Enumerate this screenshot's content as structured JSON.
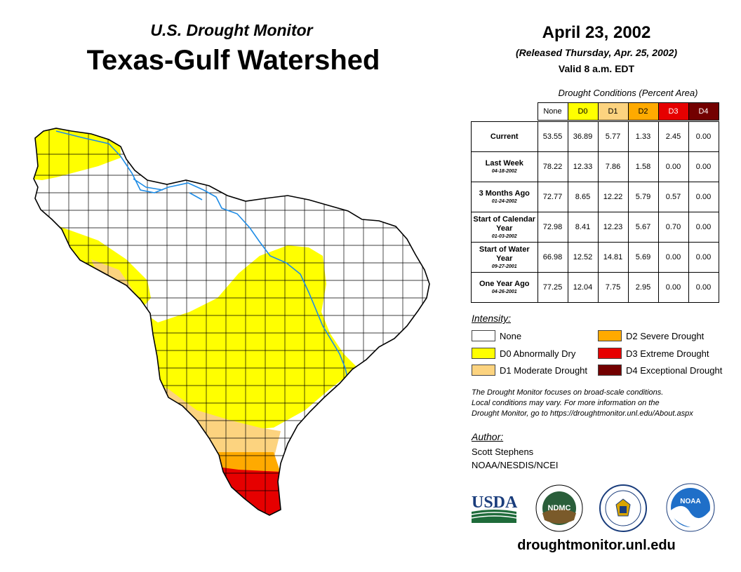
{
  "header": {
    "subtitle": "U.S. Drought Monitor",
    "title": "Texas-Gulf Watershed",
    "date": "April 23, 2002",
    "released": "(Released Thursday, Apr. 25, 2002)",
    "valid": "Valid 8 a.m. EDT"
  },
  "table": {
    "caption": "Drought Conditions (Percent Area)",
    "columns": [
      "None",
      "D0",
      "D1",
      "D2",
      "D3",
      "D4"
    ],
    "column_colors": [
      "#ffffff",
      "#ffff00",
      "#fcd37f",
      "#ffaa00",
      "#e60000",
      "#730000"
    ],
    "rows": [
      {
        "label": "Current",
        "date": "",
        "values": [
          "53.55",
          "36.89",
          "5.77",
          "1.33",
          "2.45",
          "0.00"
        ]
      },
      {
        "label": "Last Week",
        "date": "04-18-2002",
        "values": [
          "78.22",
          "12.33",
          "7.86",
          "1.58",
          "0.00",
          "0.00"
        ]
      },
      {
        "label": "3 Months Ago",
        "date": "01-24-2002",
        "values": [
          "72.77",
          "8.65",
          "12.22",
          "5.79",
          "0.57",
          "0.00"
        ]
      },
      {
        "label": "Start of Calendar Year",
        "date": "01-03-2002",
        "values": [
          "72.98",
          "8.41",
          "12.23",
          "5.67",
          "0.70",
          "0.00"
        ]
      },
      {
        "label": "Start of Water Year",
        "date": "09-27-2001",
        "values": [
          "66.98",
          "12.52",
          "14.81",
          "5.69",
          "0.00",
          "0.00"
        ]
      },
      {
        "label": "One Year Ago",
        "date": "04-26-2001",
        "values": [
          "77.25",
          "12.04",
          "7.75",
          "2.95",
          "0.00",
          "0.00"
        ]
      }
    ]
  },
  "legend": {
    "title": "Intensity:",
    "items": [
      {
        "label": "None",
        "color": "#ffffff"
      },
      {
        "label": "D0 Abnormally Dry",
        "color": "#ffff00"
      },
      {
        "label": "D1 Moderate Drought",
        "color": "#fcd37f"
      },
      {
        "label": "D2 Severe Drought",
        "color": "#ffaa00"
      },
      {
        "label": "D3 Extreme Drought",
        "color": "#e60000"
      },
      {
        "label": "D4 Exceptional Drought",
        "color": "#730000"
      }
    ]
  },
  "note": {
    "line1": "The Drought Monitor focuses on broad-scale conditions.",
    "line2": "Local conditions may vary. For more information on the",
    "line3": "Drought Monitor, go to https://droughtmonitor.unl.edu/About.aspx"
  },
  "author": {
    "heading": "Author:",
    "name": "Scott Stephens",
    "org": "NOAA/NESDIS/NCEI"
  },
  "logos": {
    "usda": "USDA",
    "ndmc": "NDMC",
    "noaa": "NOAA"
  },
  "footer": {
    "url": "droughtmonitor.unl.edu"
  },
  "map": {
    "river_color": "#1e8ce6"
  }
}
